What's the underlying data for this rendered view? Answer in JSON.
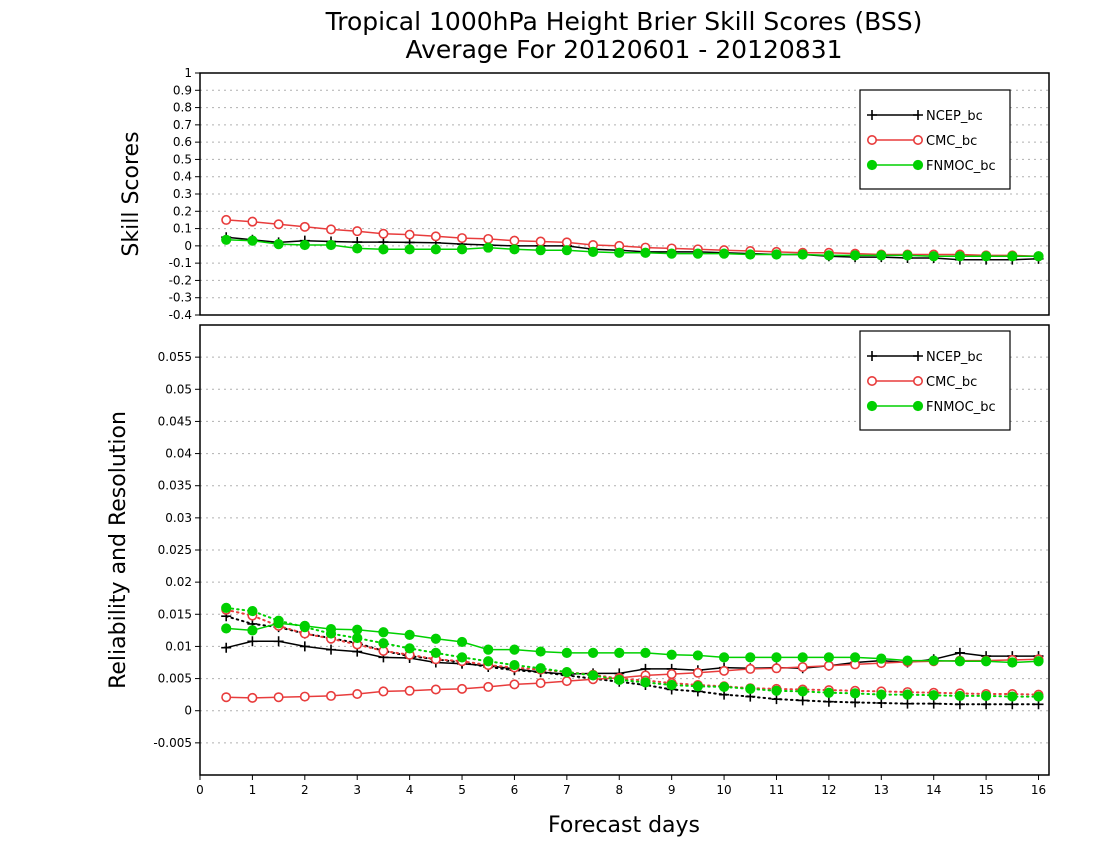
{
  "chart_data": {
    "title": "Tropical 1000hPa Height Brier Skill Scores (BSS)",
    "subtitle": "Average For 20120601 - 20120831",
    "xlabel": "Forecast days",
    "xlim": [
      0,
      16.2
    ],
    "xticks": [
      "0",
      "1",
      "2",
      "3",
      "4",
      "5",
      "6",
      "7",
      "8",
      "9",
      "10",
      "11",
      "12",
      "13",
      "14",
      "15",
      "16"
    ],
    "x": [
      0.5,
      1,
      1.5,
      2,
      2.5,
      3,
      3.5,
      4,
      4.5,
      5,
      5.5,
      6,
      6.5,
      7,
      7.5,
      8,
      8.5,
      9,
      9.5,
      10,
      10.5,
      11,
      11.5,
      12,
      12.5,
      13,
      13.5,
      14,
      14.5,
      15,
      15.5,
      16
    ],
    "colors": {
      "NCEP_bc": "#000000",
      "CMC_bc": "#e83c3c",
      "FNMOC_bc": "#00d000"
    },
    "panels": [
      {
        "type": "line",
        "ylabel": "Skill Scores",
        "ylim": [
          -0.4,
          1
        ],
        "yticks": [
          "-0.4",
          "-0.3",
          "-0.2",
          "-0.1",
          "0",
          "0.1",
          "0.2",
          "0.3",
          "0.4",
          "0.5",
          "0.6",
          "0.7",
          "0.8",
          "0.9",
          "1"
        ],
        "grid": true,
        "legend": [
          "NCEP_bc",
          "CMC_bc",
          "FNMOC_bc"
        ],
        "series": [
          {
            "name": "NCEP_bc",
            "style": "solid",
            "marker": "plus",
            "values": [
              0.05,
              0.035,
              0.02,
              0.03,
              0.025,
              0.022,
              0.022,
              0.02,
              0.018,
              0.01,
              0.005,
              0,
              0,
              0,
              -0.02,
              -0.025,
              -0.035,
              -0.035,
              -0.035,
              -0.04,
              -0.045,
              -0.05,
              -0.05,
              -0.06,
              -0.065,
              -0.065,
              -0.07,
              -0.07,
              -0.08,
              -0.08,
              -0.08,
              -0.075
            ]
          },
          {
            "name": "CMC_bc",
            "style": "solid",
            "marker": "open-circle",
            "values": [
              0.15,
              0.14,
              0.125,
              0.11,
              0.095,
              0.085,
              0.07,
              0.065,
              0.055,
              0.045,
              0.04,
              0.03,
              0.025,
              0.02,
              0.005,
              0,
              -0.01,
              -0.015,
              -0.02,
              -0.025,
              -0.03,
              -0.035,
              -0.04,
              -0.04,
              -0.045,
              -0.05,
              -0.05,
              -0.05,
              -0.05,
              -0.055,
              -0.055,
              -0.06
            ]
          },
          {
            "name": "FNMOC_bc",
            "style": "solid",
            "marker": "filled-circle",
            "values": [
              0.035,
              0.03,
              0.01,
              0.005,
              0.005,
              -0.015,
              -0.02,
              -0.02,
              -0.02,
              -0.02,
              -0.01,
              -0.02,
              -0.025,
              -0.025,
              -0.035,
              -0.04,
              -0.04,
              -0.045,
              -0.045,
              -0.045,
              -0.05,
              -0.05,
              -0.05,
              -0.055,
              -0.055,
              -0.055,
              -0.055,
              -0.06,
              -0.06,
              -0.06,
              -0.06,
              -0.06
            ]
          }
        ]
      },
      {
        "type": "line",
        "ylabel": "Reliability and Resolution",
        "ylim": [
          -0.01,
          0.06
        ],
        "yticks": [
          "-0.005",
          "0",
          "0.005",
          "0.01",
          "0.015",
          "0.02",
          "0.025",
          "0.03",
          "0.035",
          "0.04",
          "0.045",
          "0.05",
          "0.055"
        ],
        "grid": true,
        "legend": [
          "NCEP_bc",
          "CMC_bc",
          "FNMOC_bc"
        ],
        "series": [
          {
            "name": "NCEP_bc",
            "style": "solid",
            "marker": "plus",
            "values": [
              0.0098,
              0.0108,
              0.0108,
              0.01,
              0.0095,
              0.0092,
              0.0083,
              0.0082,
              0.0075,
              0.0073,
              0.007,
              0.0065,
              0.006,
              0.0057,
              0.0058,
              0.0058,
              0.0065,
              0.0065,
              0.0063,
              0.0067,
              0.0066,
              0.0067,
              0.0066,
              0.007,
              0.0075,
              0.0078,
              0.0075,
              0.008,
              0.009,
              0.0085,
              0.0085,
              0.0085
            ]
          },
          {
            "name": "NCEP_bc",
            "style": "dotted",
            "marker": "plus",
            "values": [
              0.0147,
              0.0135,
              0.013,
              0.012,
              0.0113,
              0.0105,
              0.0093,
              0.0085,
              0.008,
              0.0075,
              0.0068,
              0.0063,
              0.006,
              0.0055,
              0.005,
              0.0045,
              0.004,
              0.0033,
              0.003,
              0.0025,
              0.0022,
              0.0018,
              0.0016,
              0.0014,
              0.0013,
              0.0012,
              0.0011,
              0.0011,
              0.001,
              0.001,
              0.001,
              0.001
            ]
          },
          {
            "name": "CMC_bc",
            "style": "solid",
            "marker": "open-circle",
            "values": [
              0.0021,
              0.002,
              0.0021,
              0.0022,
              0.0023,
              0.0026,
              0.003,
              0.0031,
              0.0033,
              0.0034,
              0.0037,
              0.0041,
              0.0043,
              0.0046,
              0.0049,
              0.0051,
              0.0055,
              0.0057,
              0.0059,
              0.0062,
              0.0065,
              0.0066,
              0.0068,
              0.007,
              0.0072,
              0.0074,
              0.0076,
              0.0077,
              0.0078,
              0.0078,
              0.0079,
              0.008
            ]
          },
          {
            "name": "CMC_bc",
            "style": "dotted",
            "marker": "open-circle",
            "values": [
              0.0157,
              0.0148,
              0.0132,
              0.012,
              0.0112,
              0.0103,
              0.0093,
              0.0087,
              0.008,
              0.0077,
              0.0071,
              0.0067,
              0.0064,
              0.006,
              0.0056,
              0.005,
              0.0047,
              0.0043,
              0.004,
              0.0038,
              0.0035,
              0.0034,
              0.0033,
              0.0032,
              0.0031,
              0.003,
              0.0029,
              0.0028,
              0.0027,
              0.0026,
              0.0026,
              0.0025
            ]
          },
          {
            "name": "FNMOC_bc",
            "style": "solid",
            "marker": "filled-circle",
            "values": [
              0.0128,
              0.0125,
              0.0136,
              0.0132,
              0.0127,
              0.0126,
              0.0122,
              0.0118,
              0.0112,
              0.0107,
              0.0095,
              0.0095,
              0.0092,
              0.009,
              0.009,
              0.009,
              0.009,
              0.0087,
              0.0086,
              0.0083,
              0.0083,
              0.0083,
              0.0083,
              0.0083,
              0.0083,
              0.0081,
              0.0078,
              0.0078,
              0.0077,
              0.0077,
              0.0075,
              0.0077
            ]
          },
          {
            "name": "FNMOC_bc",
            "style": "dotted",
            "marker": "filled-circle",
            "values": [
              0.016,
              0.0155,
              0.014,
              0.013,
              0.012,
              0.0113,
              0.0105,
              0.0097,
              0.009,
              0.0083,
              0.0077,
              0.0071,
              0.0066,
              0.006,
              0.0055,
              0.0048,
              0.0044,
              0.004,
              0.0038,
              0.0037,
              0.0034,
              0.0031,
              0.003,
              0.0028,
              0.0027,
              0.0025,
              0.0025,
              0.0024,
              0.0023,
              0.0023,
              0.0022,
              0.0022
            ]
          }
        ]
      }
    ]
  }
}
